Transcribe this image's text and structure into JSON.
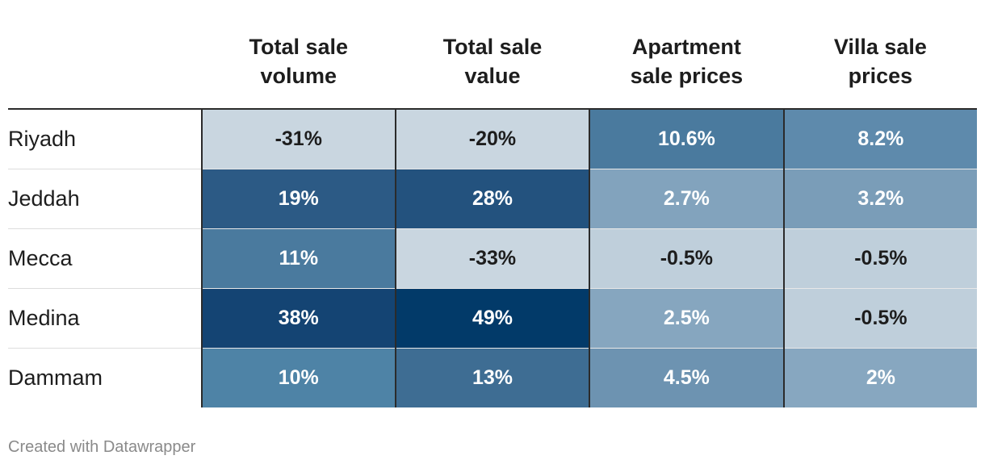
{
  "chart_data": {
    "type": "heatmap",
    "columns": [
      [
        "Total sale",
        "volume"
      ],
      [
        "Total sale",
        "value"
      ],
      [
        "Apartment",
        "sale prices"
      ],
      [
        "Villa sale",
        "prices"
      ]
    ],
    "rows": [
      {
        "label": "Riyadh",
        "labels": [
          "-31%",
          "-20%",
          "10.6%",
          "8.2%"
        ],
        "values": [
          -31,
          -20,
          10.6,
          8.2
        ]
      },
      {
        "label": "Jeddah",
        "labels": [
          "19%",
          "28%",
          "2.7%",
          "3.2%"
        ],
        "values": [
          19,
          28,
          2.7,
          3.2
        ]
      },
      {
        "label": "Mecca",
        "labels": [
          "11%",
          "-33%",
          "-0.5%",
          "-0.5%"
        ],
        "values": [
          11,
          -33,
          -0.5,
          -0.5
        ]
      },
      {
        "label": "Medina",
        "labels": [
          "38%",
          "49%",
          "2.5%",
          "-0.5%"
        ],
        "values": [
          38,
          49,
          2.5,
          -0.5
        ]
      },
      {
        "label": "Dammam",
        "labels": [
          "10%",
          "13%",
          "4.5%",
          "2%"
        ],
        "values": [
          10,
          13,
          4.5,
          2
        ]
      }
    ],
    "cell_colors": [
      [
        "#c9d6e0",
        "#c9d6e0",
        "#4a7a9e",
        "#5e8aac"
      ],
      [
        "#2c5a85",
        "#23527e",
        "#82a3bd",
        "#7a9db8"
      ],
      [
        "#4a7a9e",
        "#c9d6e0",
        "#bfcfdb",
        "#bfcfdb"
      ],
      [
        "#144473",
        "#023a69",
        "#86a6bf",
        "#bfcfdb"
      ],
      [
        "#4e83a6",
        "#3e6d93",
        "#6d93b1",
        "#87a7c0"
      ]
    ],
    "dark_text_color": "#1d1d1d",
    "light_text_color": "#ffffff"
  },
  "credit": "Created with Datawrapper"
}
